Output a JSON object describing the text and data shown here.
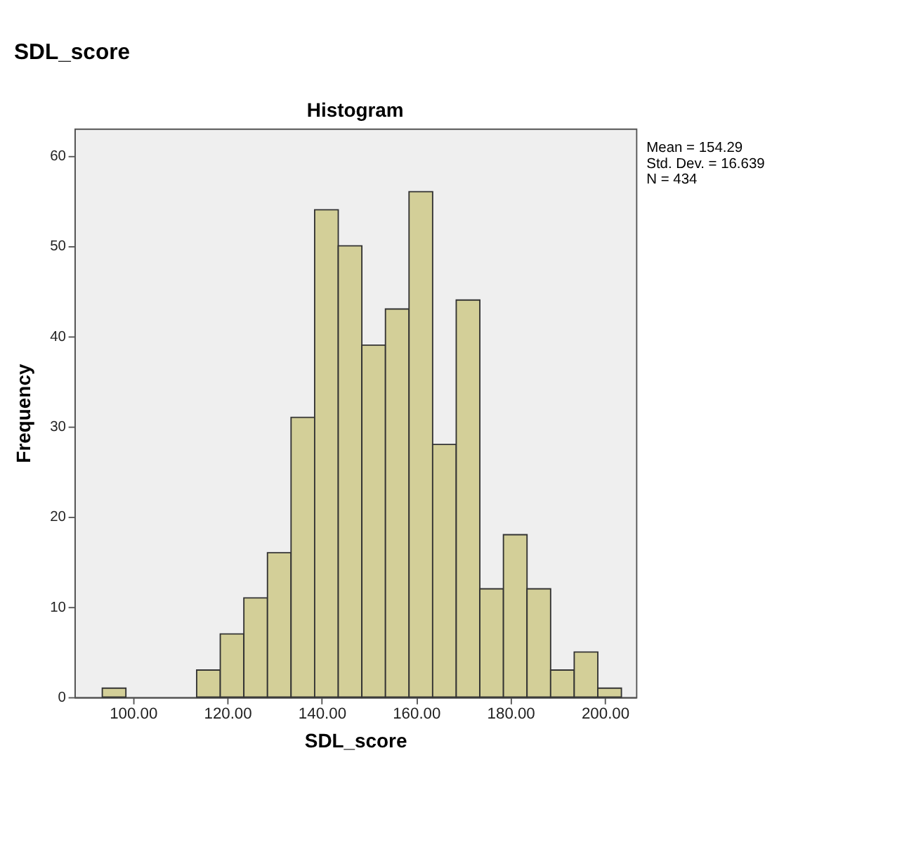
{
  "chart_data": {
    "type": "histogram",
    "title": "SDL_score",
    "subtitle": "Histogram",
    "xlabel": "SDL_score",
    "ylabel": "Frequency",
    "bins": [
      93.5,
      98.5,
      103.5,
      108.5,
      113.5,
      118.5,
      123.5,
      128.5,
      133.5,
      138.5,
      143.5,
      148.5,
      153.5,
      158.5,
      163.5,
      168.5,
      173.5,
      178.5,
      183.5,
      188.5,
      193.5,
      198.5,
      203.5
    ],
    "values": [
      1,
      0,
      0,
      0,
      3,
      7,
      11,
      16,
      31,
      54,
      50,
      39,
      43,
      56,
      28,
      44,
      12,
      18,
      12,
      3,
      5,
      1
    ],
    "color": "#d3cf98",
    "xlim": [
      87.6,
      206.6
    ],
    "ylim": [
      0,
      63
    ],
    "xticks": [
      {
        "value": 100,
        "label": "100.00"
      },
      {
        "value": 120,
        "label": "120.00"
      },
      {
        "value": 140,
        "label": "140.00"
      },
      {
        "value": 160,
        "label": "160.00"
      },
      {
        "value": 180,
        "label": "180.00"
      },
      {
        "value": 200,
        "label": "200.00"
      }
    ],
    "yticks": [
      0,
      10,
      20,
      30,
      40,
      50,
      60
    ],
    "grid": false,
    "annotations": [
      "Mean = 154.29",
      "Std. Dev. = 16.639",
      "N = 434"
    ]
  }
}
